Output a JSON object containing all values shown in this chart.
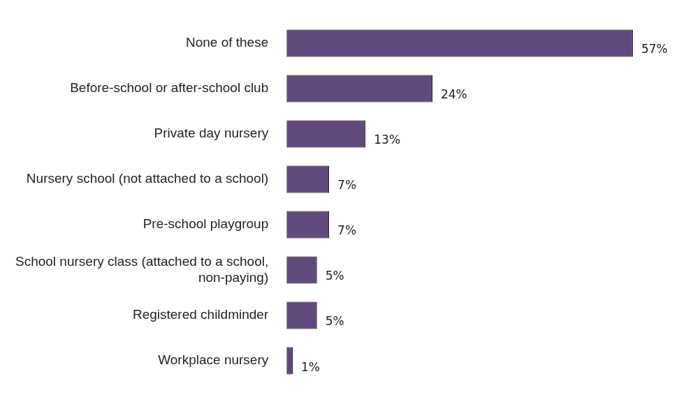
{
  "chart_data": {
    "type": "bar",
    "orientation": "horizontal",
    "categories": [
      "None of these",
      "Before-school or after-school club",
      "Private day nursery",
      "Nursery school (not attached to a school)",
      "Pre-school playgroup",
      "School nursery class (attached to a school, non-paying)",
      "Registered childminder",
      "Workplace nursery"
    ],
    "values": [
      57,
      24,
      13,
      7,
      7,
      5,
      5,
      1
    ],
    "value_labels": [
      "57%",
      "24%",
      "13%",
      "7%",
      "7%",
      "5%",
      "5%",
      "1%"
    ],
    "color": "#604a7b"
  }
}
